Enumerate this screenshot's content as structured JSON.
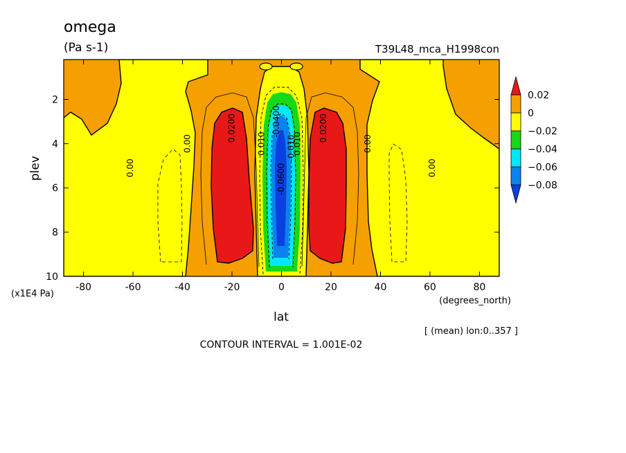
{
  "chart_data": {
    "type": "heatmap",
    "variable": "omega",
    "units": "(Pa s-1)",
    "case_name": "T39L48_mca_H1998con",
    "xlabel": "lat",
    "xunits": "(degrees_north)",
    "ylabel": "plev",
    "yunits": "(x1E4 Pa)",
    "x_ticks": [
      "-80",
      "-60",
      "-40",
      "-20",
      "0",
      "20",
      "40",
      "60",
      "80"
    ],
    "x_tick_values": [
      -80,
      -60,
      -40,
      -20,
      0,
      20,
      40,
      60,
      80
    ],
    "y_ticks": [
      "2",
      "4",
      "6",
      "8",
      "10"
    ],
    "y_tick_values": [
      2,
      4,
      6,
      8,
      10
    ],
    "xlim": [
      -88,
      88
    ],
    "ylim": [
      10,
      0.2
    ],
    "mean_note": "[ (mean) lon:0..357 ]",
    "contour_interval": "CONTOUR INTERVAL = 1.001E-02",
    "colorbar": {
      "labels": [
        "0.02",
        "0",
        "−0.02",
        "−0.04",
        "−0.06",
        "−0.08"
      ],
      "colors": [
        "#e81818",
        "#f5a000",
        "#ffff00",
        "#18d818",
        "#00e8ff",
        "#0a82f0",
        "#0a40e0"
      ]
    },
    "contour_labels": [
      {
        "text": "0.00",
        "lat": -60,
        "p": 5.1
      },
      {
        "text": "0.00",
        "lat": -37,
        "p": 4.0
      },
      {
        "text": "0.0200",
        "lat": -19,
        "p": 3.3
      },
      {
        "text": "0.010",
        "lat": -7,
        "p": 4.0
      },
      {
        "text": "-0.0400",
        "lat": -1,
        "p": 3.0
      },
      {
        "text": "-0.0600",
        "lat": 1,
        "p": 5.6
      },
      {
        "text": "-0.010",
        "lat": 5,
        "p": 4.2
      },
      {
        "text": "0.010",
        "lat": 7.5,
        "p": 4.0
      },
      {
        "text": "0.0200",
        "lat": 18,
        "p": 3.3
      },
      {
        "text": "0.00",
        "lat": 36,
        "p": 4.0
      },
      {
        "text": "0.00",
        "lat": 62,
        "p": 5.1
      }
    ]
  }
}
